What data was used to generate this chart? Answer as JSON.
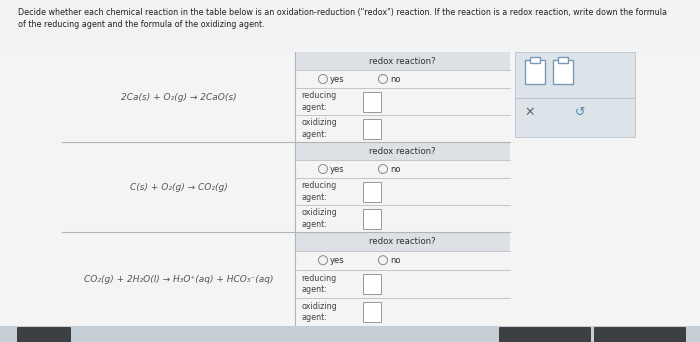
{
  "title_line1": "Decide whether each chemical reaction in the table below is an oxidation-reduction (\"redox\") reaction. If the reaction is a redox reaction, write down the formula",
  "title_line2": "of the reducing agent and the formula of the oxidizing agent.",
  "bg_color": "#dce3ea",
  "page_bg": "#f4f4f4",
  "table_bg": "#e8eaed",
  "cell_bg": "#eef0f2",
  "right_col_bg": "#e4e6e9",
  "header_cell_bg": "#dde0e4",
  "white": "#ffffff",
  "border_color": "#b0b4b8",
  "text_color": "#2a2a2a",
  "light_text": "#555555",
  "reactions": [
    "2Ca(s) + O₂(g) → 2CaO(s)",
    "C(s) + O₂(g) → CO₂(g)",
    "CO₂(g) + 2H₂O(l) → H₃O⁺(aq) + HCO₃⁻(aq)"
  ],
  "check_btn_color": "#3d4043",
  "save_btn_color": "#3d4043",
  "submit_btn_color": "#3d4043",
  "bottom_bar_color": "#c8cdd3",
  "icon_color": "#7a9ab5",
  "icon_bg": "#dce3ea",
  "x_color": "#666666",
  "refresh_color": "#4a7a9b"
}
